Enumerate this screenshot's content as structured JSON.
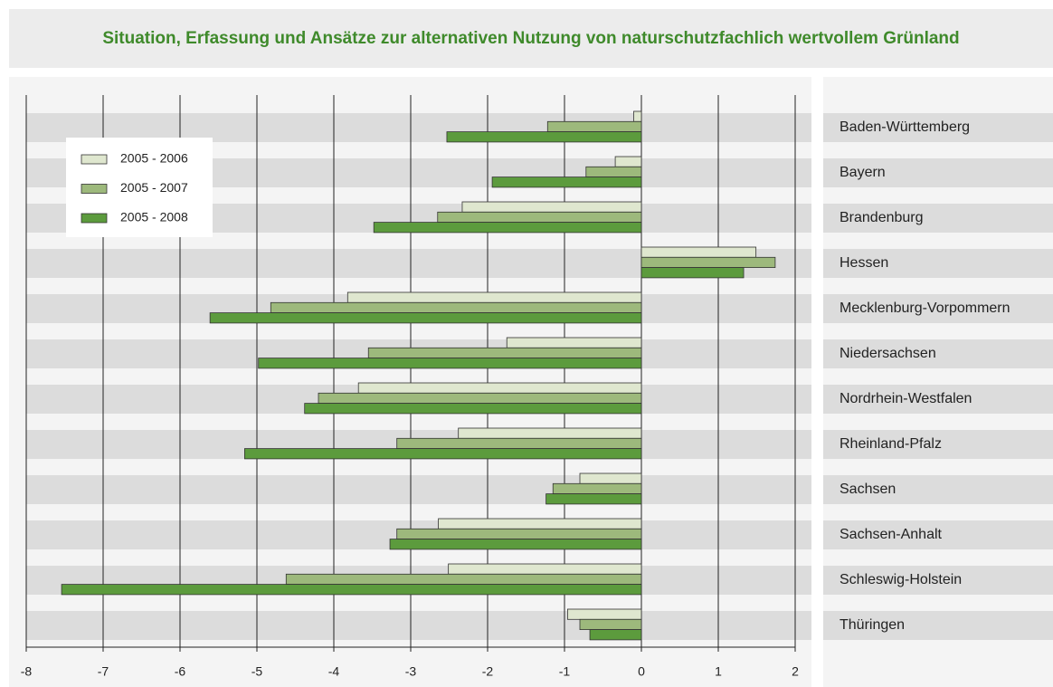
{
  "chart_data": {
    "type": "hbar",
    "title": "Situation, Erfassung und Ansätze zur alternativen Nutzung von naturschutzfachlich wertvollem Grünland",
    "categories": [
      "Baden-Württemberg",
      "Bayern",
      "Brandenburg",
      "Hessen",
      "Mecklenburg-Vorpommern",
      "Niedersachsen",
      "Nordrhein-Westfalen",
      "Rheinland-Pfalz",
      "Sachsen",
      "Sachsen-Anhalt",
      "Schleswig-Holstein",
      "Thüringen"
    ],
    "series": [
      {
        "name": "2005 - 2006",
        "color": "#dfe7cf",
        "values": [
          -0.1,
          -0.34,
          -2.33,
          1.49,
          -3.82,
          -1.75,
          -3.68,
          -2.38,
          -0.8,
          -2.64,
          -2.51,
          -0.96
        ]
      },
      {
        "name": "2005 - 2007",
        "color": "#9db97c",
        "values": [
          -1.22,
          -0.72,
          -2.65,
          1.74,
          -4.82,
          -3.55,
          -4.2,
          -3.18,
          -1.15,
          -3.18,
          -4.62,
          -0.8
        ]
      },
      {
        "name": "2005 - 2008",
        "color": "#5c9b3d",
        "values": [
          -2.53,
          -1.94,
          -3.48,
          1.33,
          -5.61,
          -4.98,
          -4.38,
          -5.16,
          -1.24,
          -3.27,
          -7.54,
          -0.67
        ]
      }
    ],
    "xlim": [
      -8,
      2
    ],
    "xticks": [
      -8,
      -7,
      -6,
      -5,
      -4,
      -3,
      -2,
      -1,
      0,
      1,
      2
    ],
    "grid": true,
    "legend": "upper left"
  }
}
